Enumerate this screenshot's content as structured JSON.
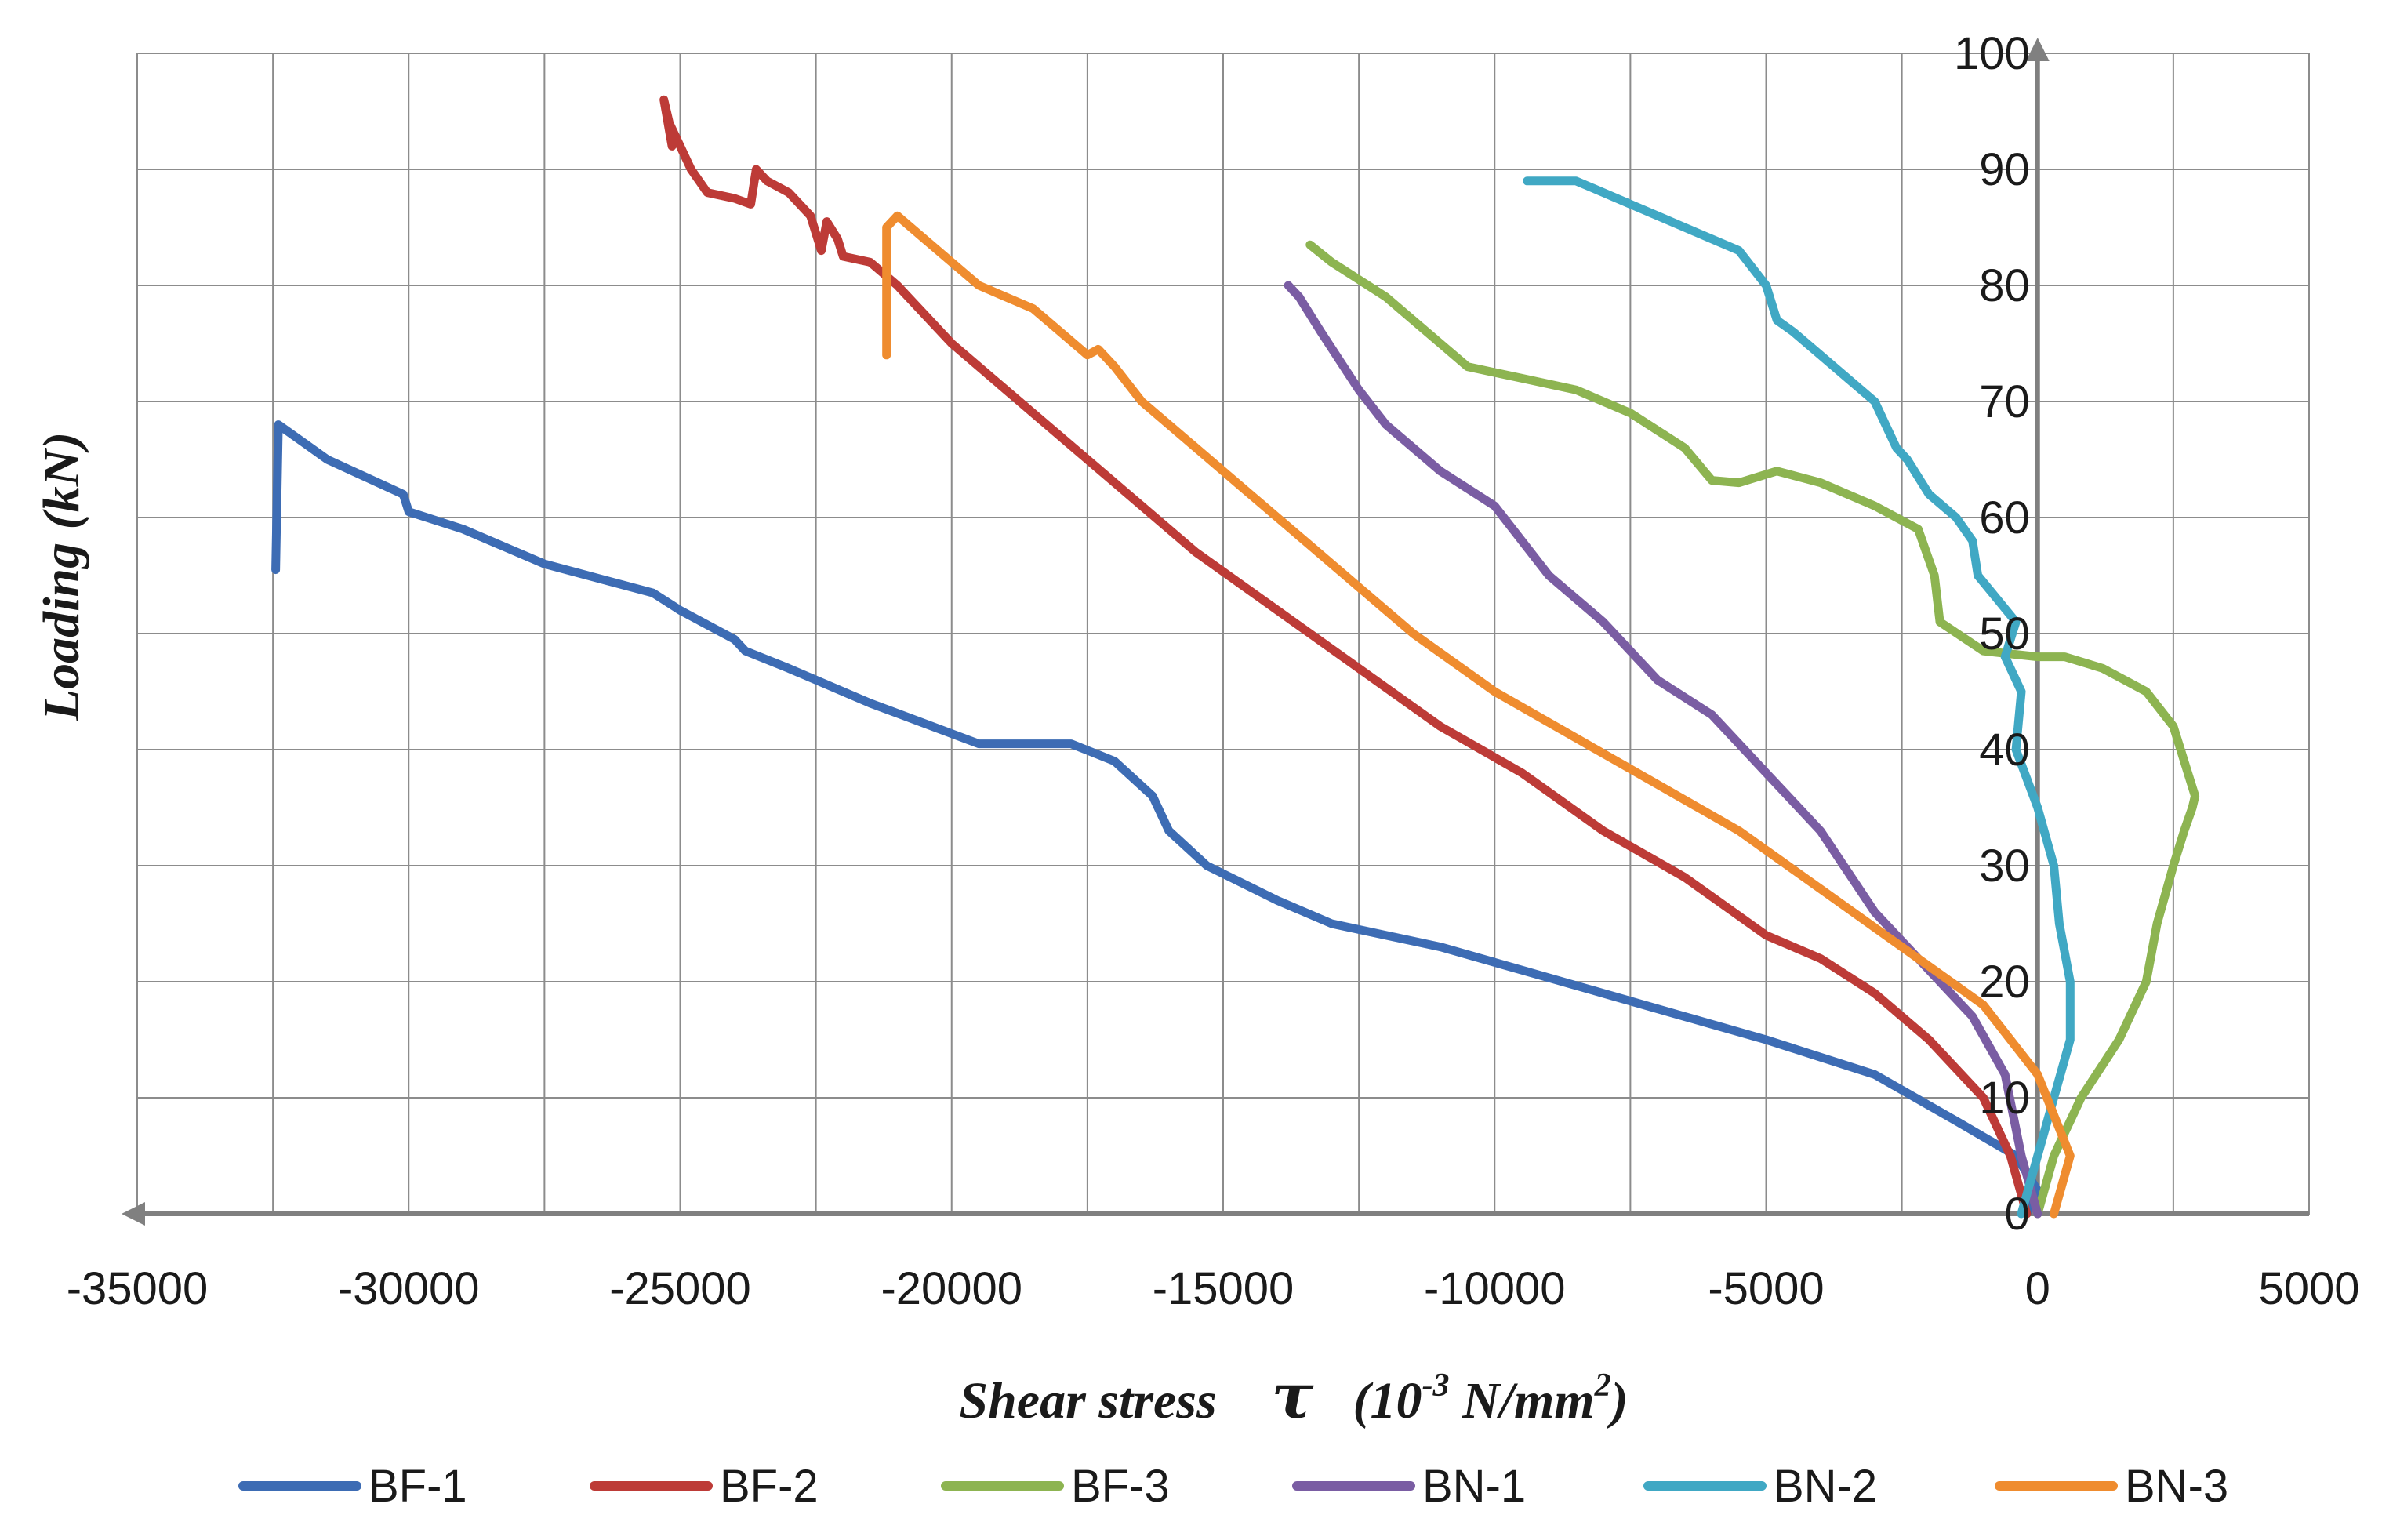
{
  "chart_data": {
    "type": "line",
    "title": "",
    "xlabel": {
      "prefix": "Shear stress",
      "symbol": "τ",
      "unit_open": "(10",
      "unit_exp": "-3",
      "unit_mid": " N/mm",
      "unit_exp2": "2",
      "unit_close": ")"
    },
    "ylabel": "Loading (kN)",
    "xlim": [
      -35000,
      5000
    ],
    "ylim": [
      0,
      100
    ],
    "x_ticks": [
      -35000,
      -30000,
      -25000,
      -20000,
      -15000,
      -10000,
      -5000,
      0,
      5000
    ],
    "y_ticks": [
      0,
      10,
      20,
      30,
      40,
      50,
      60,
      70,
      80,
      90,
      100
    ],
    "x_grid_step": 2500,
    "grid": true,
    "legend_position": "bottom",
    "series": [
      {
        "name": "BF-1",
        "color": "#3d6cb4",
        "x": [
          -200,
          0,
          -400,
          -1500,
          -3000,
          -5000,
          -6500,
          -8000,
          -9500,
          -11000,
          -13000,
          -14000,
          -15300,
          -16000,
          -16300,
          -17000,
          -17800,
          -19500,
          -21500,
          -23000,
          -23800,
          -24000,
          -25000,
          -25500,
          -27500,
          -29000,
          -30000,
          -30100,
          -31500,
          -32400,
          -32450
        ],
        "y": [
          0,
          2,
          5,
          8,
          12,
          15,
          17,
          19,
          21,
          23,
          25,
          27,
          30,
          33,
          36,
          39,
          40.5,
          40.5,
          44,
          47,
          48.5,
          49.5,
          52,
          53.5,
          56,
          59,
          60.5,
          62,
          65,
          68,
          55.5
        ]
      },
      {
        "name": "BF-2",
        "color": "#bd3b37",
        "x": [
          -200,
          -500,
          -1000,
          -2000,
          -3000,
          -4000,
          -5000,
          -6500,
          -8000,
          -9500,
          -11000,
          -12500,
          -14000,
          -15500,
          -17000,
          -18500,
          -20000,
          -21000,
          -21500,
          -22000,
          -22100,
          -22300,
          -22400,
          -22600,
          -23000,
          -23400,
          -23600,
          -23700,
          -24000,
          -24500,
          -24800,
          -25000,
          -25200,
          -25300,
          -25150
        ],
        "y": [
          0,
          5,
          10,
          15,
          19,
          22,
          24,
          29,
          33,
          38,
          42,
          47,
          52,
          57,
          63,
          69,
          75,
          80,
          82,
          82.5,
          84,
          85.5,
          83,
          86,
          88,
          89,
          90,
          87,
          87.5,
          88,
          90,
          92,
          94,
          96,
          92
        ]
      },
      {
        "name": "BF-3",
        "color": "#8db451",
        "x": [
          0,
          300,
          800,
          1500,
          2000,
          2200,
          2500,
          2700,
          2850,
          2900,
          2500,
          2000,
          1200,
          500,
          0,
          -1000,
          -1800,
          -1900,
          -2200,
          -3000,
          -4000,
          -4800,
          -5500,
          -6000,
          -6500,
          -7500,
          -8500,
          -9500,
          -10500,
          -11000,
          -12000,
          -13000,
          -13400
        ],
        "y": [
          0,
          5,
          10,
          15,
          20,
          25,
          30,
          33,
          35,
          36,
          42,
          45,
          47,
          48,
          48,
          48.5,
          51,
          55,
          59,
          61,
          63,
          64,
          63,
          63.2,
          66,
          69,
          71,
          72,
          73,
          75,
          79,
          82,
          83.5
        ]
      },
      {
        "name": "BN-1",
        "color": "#7a5da3",
        "x": [
          0,
          -300,
          -600,
          -1200,
          -2000,
          -3000,
          -4000,
          -5000,
          -6000,
          -7000,
          -8000,
          -9000,
          -10000,
          -11000,
          -12000,
          -12500,
          -13200,
          -13600,
          -13800
        ],
        "y": [
          0,
          5,
          12,
          17,
          21,
          26,
          33,
          38,
          43,
          46,
          51,
          55,
          61,
          64,
          68,
          71,
          76,
          79,
          80
        ]
      },
      {
        "name": "BN-2",
        "color": "#40a8c4",
        "x": [
          -300,
          0,
          300,
          600,
          600,
          400,
          300,
          0,
          -400,
          -300,
          -600,
          -400,
          -1100,
          -1200,
          -1500,
          -2000,
          -2400,
          -2600,
          -2800,
          -3000,
          -3500,
          -4000,
          -4500,
          -4800,
          -5000,
          -5500,
          -6000,
          -6500,
          -7000,
          -7500,
          -8000,
          -8500,
          -9000,
          -9400
        ],
        "y": [
          0,
          5,
          10,
          15,
          20,
          25,
          30,
          35,
          40,
          45,
          48,
          51,
          55,
          58,
          60,
          62,
          65,
          66,
          68,
          70,
          72,
          74,
          76,
          77,
          80,
          83,
          84,
          85,
          86,
          87,
          88,
          89,
          89,
          89
        ]
      },
      {
        "name": "BN-3",
        "color": "#ef8c2f",
        "x": [
          300,
          600,
          0,
          -1000,
          -2500,
          -4000,
          -5500,
          -7000,
          -8500,
          -10000,
          -11500,
          -12500,
          -13500,
          -14500,
          -15500,
          -16500,
          -17000,
          -17300,
          -17500,
          -18000,
          -18500,
          -19500,
          -20500,
          -21000,
          -21200,
          -21200
        ],
        "y": [
          0,
          5,
          12,
          18,
          23,
          28,
          33,
          37,
          41,
          45,
          50,
          54,
          58,
          62,
          66,
          70,
          73,
          74.5,
          74,
          76,
          78,
          80,
          84,
          86,
          85,
          74
        ]
      }
    ]
  }
}
